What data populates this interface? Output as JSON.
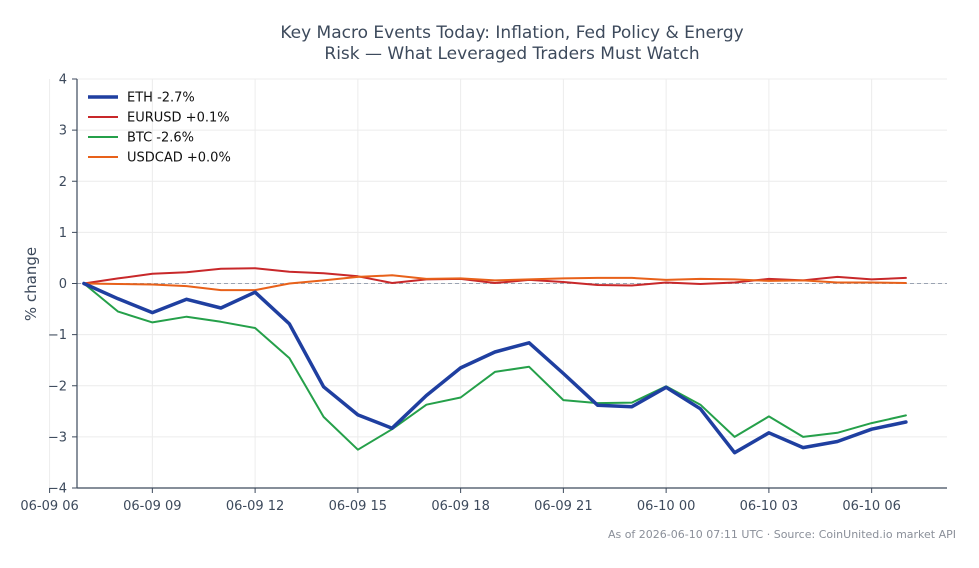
{
  "chart_data": {
    "type": "line",
    "title_lines": [
      "Key Macro Events Today: Inflation, Fed Policy & Energy",
      "Risk — What Leveraged Traders Must Watch"
    ],
    "ylabel": "% change",
    "ylim": [
      -4,
      4
    ],
    "yticks": [
      4,
      3,
      2,
      1,
      0,
      -1,
      -2,
      -3,
      -4
    ],
    "ytick_labels": [
      "4",
      "3",
      "2",
      "1",
      "0",
      "−1",
      "−2",
      "−3",
      "−4"
    ],
    "xlim": [
      "2026-06-09 06:48",
      "2026-06-10 08:12"
    ],
    "xticks": [
      "2026-06-09 06:00",
      "2026-06-09 09:00",
      "2026-06-09 12:00",
      "2026-06-09 15:00",
      "2026-06-09 18:00",
      "2026-06-09 21:00",
      "2026-06-10 00:00",
      "2026-06-10 03:00",
      "2026-06-10 06:00"
    ],
    "xtick_labels": [
      "06-09 06",
      "06-09 09",
      "06-09 12",
      "06-09 15",
      "06-09 18",
      "06-09 21",
      "06-10 00",
      "06-10 03",
      "06-10 06"
    ],
    "x": [
      "2026-06-09 07:00",
      "2026-06-09 08:00",
      "2026-06-09 09:00",
      "2026-06-09 10:00",
      "2026-06-09 11:00",
      "2026-06-09 12:00",
      "2026-06-09 13:00",
      "2026-06-09 14:00",
      "2026-06-09 15:00",
      "2026-06-09 16:00",
      "2026-06-09 17:00",
      "2026-06-09 18:00",
      "2026-06-09 19:00",
      "2026-06-09 20:00",
      "2026-06-09 21:00",
      "2026-06-09 22:00",
      "2026-06-09 23:00",
      "2026-06-10 00:00",
      "2026-06-10 01:00",
      "2026-06-10 02:00",
      "2026-06-10 03:00",
      "2026-06-10 04:00",
      "2026-06-10 05:00",
      "2026-06-10 06:00",
      "2026-06-10 07:00"
    ],
    "series": [
      {
        "name": "ETH -2.7%",
        "color": "#1f3fa0",
        "width": 3.5,
        "values": [
          0.0,
          -0.3,
          -0.57,
          -0.31,
          -0.48,
          -0.17,
          -0.79,
          -2.02,
          -2.57,
          -2.83,
          -2.19,
          -1.65,
          -1.34,
          -1.16,
          -1.76,
          -2.38,
          -2.41,
          -2.03,
          -2.45,
          -3.31,
          -2.92,
          -3.21,
          -3.09,
          -2.85,
          -2.71
        ]
      },
      {
        "name": "EURUSD +0.1%",
        "color": "#c8282a",
        "width": 2,
        "values": [
          0.0,
          0.1,
          0.19,
          0.22,
          0.29,
          0.3,
          0.23,
          0.2,
          0.14,
          0.01,
          0.08,
          0.09,
          0.01,
          0.07,
          0.03,
          -0.03,
          -0.04,
          0.02,
          -0.01,
          0.02,
          0.09,
          0.06,
          0.13,
          0.08,
          0.11
        ]
      },
      {
        "name": "BTC -2.6%",
        "color": "#25a04a",
        "width": 2,
        "values": [
          0.0,
          -0.55,
          -0.76,
          -0.65,
          -0.75,
          -0.87,
          -1.46,
          -2.61,
          -3.25,
          -2.85,
          -2.37,
          -2.23,
          -1.73,
          -1.63,
          -2.28,
          -2.34,
          -2.33,
          -2.01,
          -2.37,
          -3.0,
          -2.6,
          -3.0,
          -2.92,
          -2.73,
          -2.58
        ]
      },
      {
        "name": "USDCAD +0.0%",
        "color": "#e8611a",
        "width": 2,
        "values": [
          0.0,
          -0.01,
          -0.02,
          -0.05,
          -0.13,
          -0.13,
          0.0,
          0.06,
          0.13,
          0.16,
          0.09,
          0.1,
          0.06,
          0.08,
          0.1,
          0.11,
          0.11,
          0.07,
          0.09,
          0.08,
          0.05,
          0.06,
          0.02,
          0.02,
          0.01
        ]
      }
    ],
    "zero_line": true,
    "grid": true,
    "legend_position": "upper-left"
  },
  "footer": "As of 2026-06-10 07:11 UTC · Source: CoinUnited.io market API"
}
